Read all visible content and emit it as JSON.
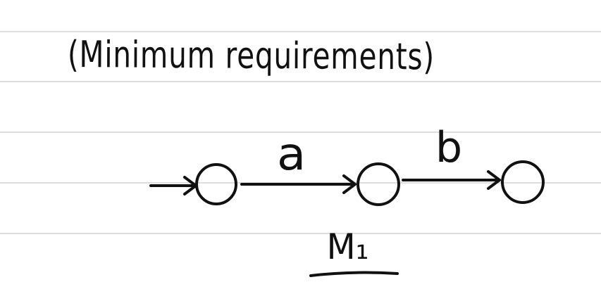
{
  "note": {
    "title": "(Minimum requirements)",
    "automaton_name": "M₁"
  },
  "diagram": {
    "states": [
      {
        "id": "q0"
      },
      {
        "id": "q1"
      },
      {
        "id": "q2"
      }
    ],
    "transitions": [
      {
        "from": "start",
        "to": "q0",
        "label": ""
      },
      {
        "from": "q0",
        "to": "q1",
        "label": "a"
      },
      {
        "from": "q1",
        "to": "q2",
        "label": "b"
      }
    ],
    "colors": {
      "ink": "#111111",
      "paper": "#ffffff",
      "ruled_line": "#dedede"
    }
  }
}
